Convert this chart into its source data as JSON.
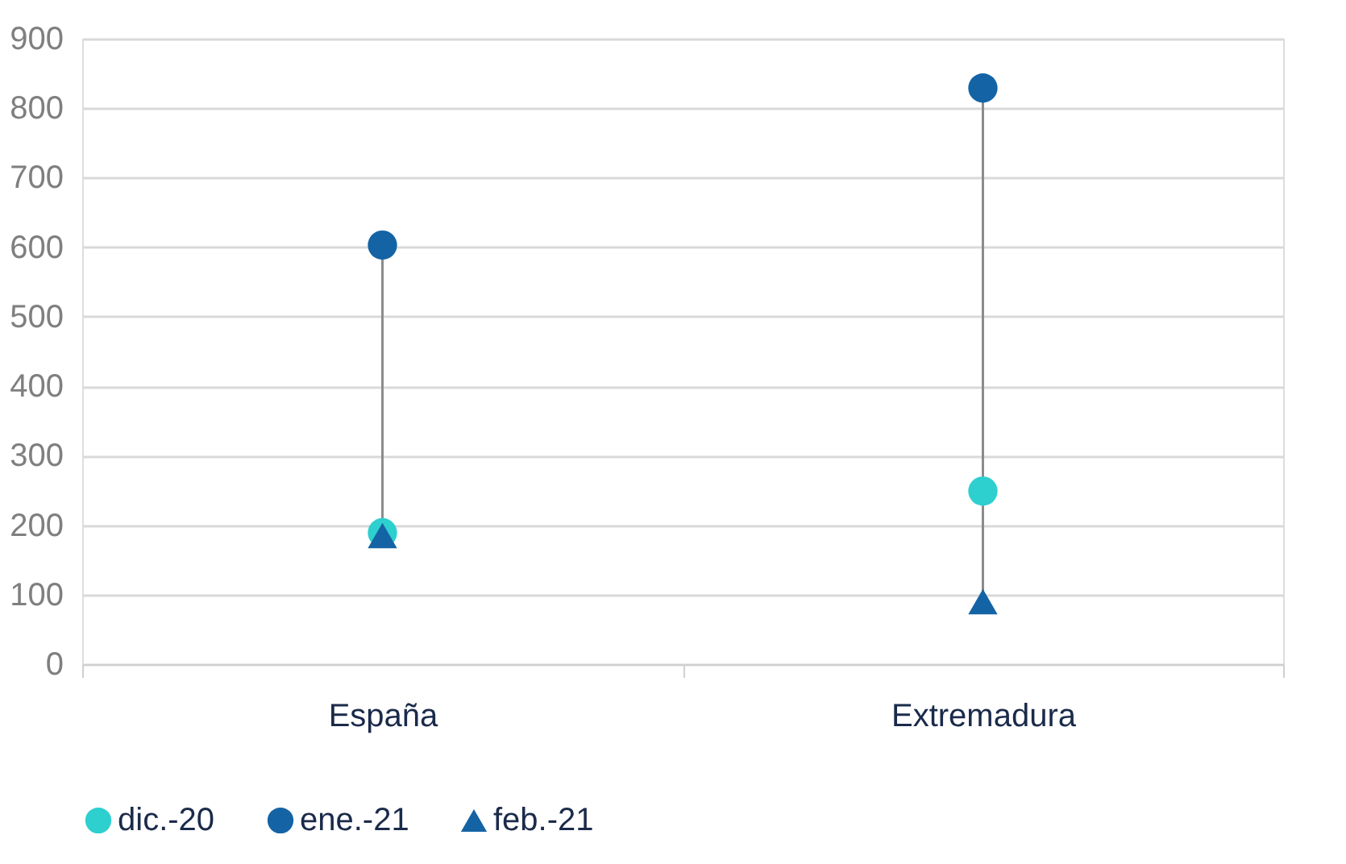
{
  "chart_data": {
    "type": "scatter",
    "categories": [
      "España",
      "Extremadura"
    ],
    "series": [
      {
        "name": "dic.-20",
        "color": "#2ecfcf",
        "marker": "circle",
        "values": [
          189,
          249
        ]
      },
      {
        "name": "ene.-21",
        "color": "#1464a5",
        "marker": "circle",
        "values": [
          603,
          829
        ]
      },
      {
        "name": "feb.-21",
        "color": "#1464a5",
        "marker": "triangle",
        "values": [
          185,
          90
        ]
      }
    ],
    "ylim": [
      0,
      900
    ],
    "yticks": [
      0,
      100,
      200,
      300,
      400,
      500,
      600,
      700,
      800,
      900
    ],
    "grid": "y",
    "legend": "bottom left"
  }
}
